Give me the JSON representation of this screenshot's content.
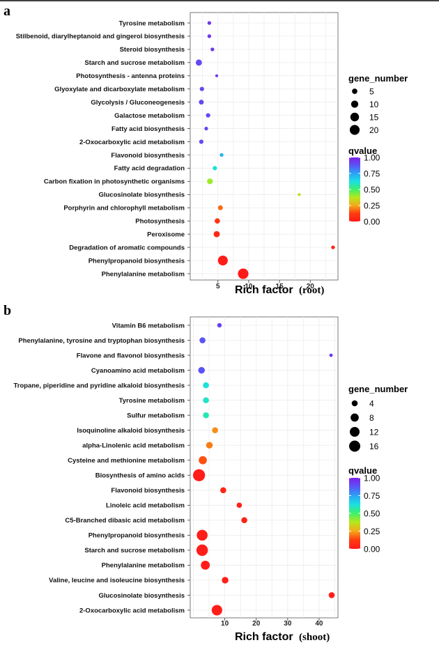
{
  "chart_data": [
    {
      "panel": "a",
      "type": "scatter",
      "xlabel": "Rich factor",
      "xlabel_suffix": "(root)",
      "xlim": [
        0.5,
        24.5
      ],
      "xticks": [
        5,
        10,
        15,
        20
      ],
      "grid": true,
      "categories": [
        "Tyrosine metabolism",
        "Stilbenoid, diarylheptanoid and gingerol biosynthesis",
        "Steroid biosynthesis",
        "Starch and sucrose metabolism",
        "Photosynthesis - antenna proteins",
        "Glyoxylate and dicarboxylate metabolism",
        "Glycolysis / Gluconeogenesis",
        "Galactose metabolism",
        "Fatty acid biosynthesis",
        "2-Oxocarboxylic acid metabolism",
        "Flavonoid biosynthesis",
        "Fatty acid degradation",
        "Carbon fixation in photosynthetic organisms",
        "Glucosinolate biosynthesis",
        "Porphyrin and chlorophyll metabolism",
        "Photosynthesis",
        "Peroxisome",
        "Degradation of aromatic compounds",
        "Phenylpropanoid biosynthesis",
        "Phenylalanine metabolism"
      ],
      "points": [
        {
          "rich_factor": 3.6,
          "gene_number": 2,
          "qvalue": 0.95
        },
        {
          "rich_factor": 3.6,
          "gene_number": 2,
          "qvalue": 0.95
        },
        {
          "rich_factor": 4.1,
          "gene_number": 2,
          "qvalue": 0.95
        },
        {
          "rich_factor": 1.9,
          "gene_number": 7,
          "qvalue": 0.9
        },
        {
          "rich_factor": 4.8,
          "gene_number": 1,
          "qvalue": 0.95
        },
        {
          "rich_factor": 2.4,
          "gene_number": 3,
          "qvalue": 0.9
        },
        {
          "rich_factor": 2.3,
          "gene_number": 4,
          "qvalue": 0.9
        },
        {
          "rich_factor": 3.4,
          "gene_number": 3,
          "qvalue": 0.9
        },
        {
          "rich_factor": 3.1,
          "gene_number": 2,
          "qvalue": 0.9
        },
        {
          "rich_factor": 2.3,
          "gene_number": 3,
          "qvalue": 0.9
        },
        {
          "rich_factor": 5.6,
          "gene_number": 2,
          "qvalue": 0.72
        },
        {
          "rich_factor": 4.5,
          "gene_number": 3,
          "qvalue": 0.62
        },
        {
          "rich_factor": 3.7,
          "gene_number": 6,
          "qvalue": 0.4
        },
        {
          "rich_factor": 18.2,
          "gene_number": 1,
          "qvalue": 0.35
        },
        {
          "rich_factor": 5.4,
          "gene_number": 4,
          "qvalue": 0.18
        },
        {
          "rich_factor": 4.9,
          "gene_number": 5,
          "qvalue": 0.1
        },
        {
          "rich_factor": 4.8,
          "gene_number": 7,
          "qvalue": 0.05
        },
        {
          "rich_factor": 23.7,
          "gene_number": 2,
          "qvalue": 0.04
        },
        {
          "rich_factor": 5.8,
          "gene_number": 20,
          "qvalue": 0.01
        },
        {
          "rich_factor": 9.1,
          "gene_number": 23,
          "qvalue": 0.0
        }
      ],
      "legend": {
        "size_title": "gene_number",
        "size_breaks": [
          5,
          10,
          15,
          20
        ],
        "size_labels": [
          "5",
          "10",
          "15",
          "20"
        ],
        "color_title": "qvalue",
        "color_labels": [
          "1.00",
          "0.75",
          "0.50",
          "0.25",
          "0.00"
        ],
        "colors": [
          "#7d1fe8",
          "#5a55f5",
          "#2aa3f5",
          "#1be0e0",
          "#3df06a",
          "#b6e81a",
          "#f3a91a",
          "#ff3b10",
          "#ff1a1a"
        ],
        "placement": "right"
      }
    },
    {
      "panel": "b",
      "type": "scatter",
      "xlabel": "Rich factor",
      "xlabel_suffix": "(shoot)",
      "xlim": [
        -1,
        46
      ],
      "xticks": [
        10,
        20,
        30,
        40
      ],
      "grid": true,
      "categories": [
        "Vitamin B6 metabolism",
        "Phenylalanine, tyrosine and tryptophan biosynthesis",
        "Flavone and flavonol biosynthesis",
        "Cyanoamino acid metabolism",
        "Tropane, piperidine and pyridine alkaloid biosynthesis",
        "Tyrosine metabolism",
        "Sulfur metabolism",
        "Isoquinoline alkaloid biosynthesis",
        "alpha-Linolenic acid metabolism",
        "Cysteine and methionine metabolism",
        "Biosynthesis of amino acids",
        "Flavonoid biosynthesis",
        "Linoleic acid metabolism",
        "C5-Branched dibasic acid metabolism",
        "Phenylpropanoid biosynthesis",
        "Starch and sucrose metabolism",
        "Phenylalanine metabolism",
        "Valine, leucine and isoleucine biosynthesis",
        "Glucosinolate biosynthesis",
        "2-Oxocarboxylic acid metabolism"
      ],
      "points": [
        {
          "rich_factor": 8.3,
          "gene_number": 2,
          "qvalue": 0.92
        },
        {
          "rich_factor": 2.9,
          "gene_number": 4,
          "qvalue": 0.88
        },
        {
          "rich_factor": 43.8,
          "gene_number": 1,
          "qvalue": 0.95
        },
        {
          "rich_factor": 2.6,
          "gene_number": 5,
          "qvalue": 0.88
        },
        {
          "rich_factor": 4.0,
          "gene_number": 4,
          "qvalue": 0.62
        },
        {
          "rich_factor": 4.0,
          "gene_number": 4,
          "qvalue": 0.6
        },
        {
          "rich_factor": 4.0,
          "gene_number": 4,
          "qvalue": 0.58
        },
        {
          "rich_factor": 6.9,
          "gene_number": 4,
          "qvalue": 0.22
        },
        {
          "rich_factor": 5.1,
          "gene_number": 5,
          "qvalue": 0.2
        },
        {
          "rich_factor": 3.0,
          "gene_number": 8,
          "qvalue": 0.15
        },
        {
          "rich_factor": 1.8,
          "gene_number": 19,
          "qvalue": 0.01
        },
        {
          "rich_factor": 9.5,
          "gene_number": 4,
          "qvalue": 0.04
        },
        {
          "rich_factor": 14.6,
          "gene_number": 3,
          "qvalue": 0.03
        },
        {
          "rich_factor": 16.2,
          "gene_number": 4,
          "qvalue": 0.03
        },
        {
          "rich_factor": 2.8,
          "gene_number": 15,
          "qvalue": 0.01
        },
        {
          "rich_factor": 2.8,
          "gene_number": 17,
          "qvalue": 0.01
        },
        {
          "rich_factor": 3.8,
          "gene_number": 10,
          "qvalue": 0.01
        },
        {
          "rich_factor": 10.1,
          "gene_number": 5,
          "qvalue": 0.02
        },
        {
          "rich_factor": 44.0,
          "gene_number": 4,
          "qvalue": 0.02
        },
        {
          "rich_factor": 7.5,
          "gene_number": 14,
          "qvalue": 0.01
        }
      ],
      "legend": {
        "size_title": "gene_number",
        "size_breaks": [
          4,
          8,
          12,
          16
        ],
        "size_labels": [
          "4",
          "8",
          "12",
          "16"
        ],
        "color_title": "qvalue",
        "color_labels": [
          "1.00",
          "0.75",
          "0.50",
          "0.25",
          "0.00"
        ],
        "colors": [
          "#7d1fe8",
          "#5a55f5",
          "#2aa3f5",
          "#1be0e0",
          "#3df06a",
          "#b6e81a",
          "#f3a91a",
          "#ff3b10",
          "#ff1a1a"
        ],
        "placement": "right"
      }
    }
  ]
}
